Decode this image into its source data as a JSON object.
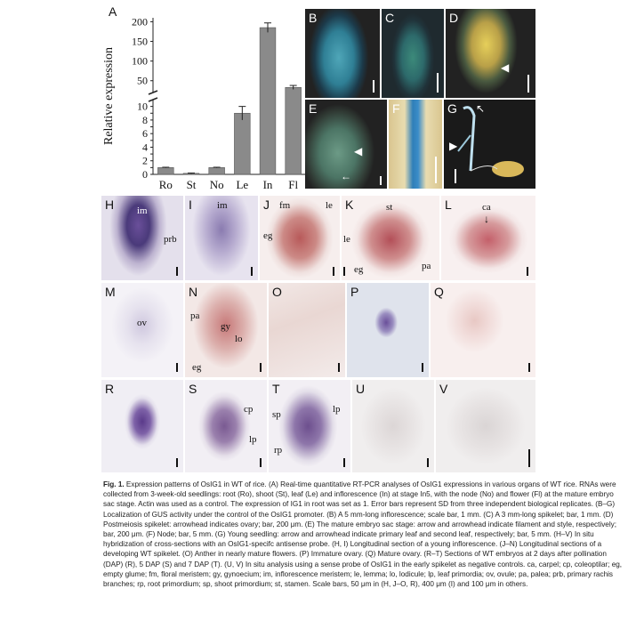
{
  "panel_labels": [
    "A",
    "B",
    "C",
    "D",
    "E",
    "F",
    "G",
    "H",
    "I",
    "J",
    "K",
    "L",
    "M",
    "N",
    "O",
    "P",
    "Q",
    "R",
    "S",
    "T",
    "U",
    "V"
  ],
  "chart_data": {
    "type": "bar",
    "categories": [
      "Ro",
      "St",
      "No",
      "Le",
      "In",
      "Fl"
    ],
    "values": [
      1.0,
      0.15,
      1.0,
      9.0,
      185,
      33
    ],
    "errors": [
      0.05,
      0.05,
      0.05,
      1.0,
      12,
      5
    ],
    "ylabel": "Relative expression",
    "xlabel": "",
    "title": "",
    "axis_break": [
      11,
      20
    ],
    "lower_ticks": [
      0,
      1,
      2,
      3,
      4,
      5,
      6,
      7,
      8,
      9,
      10
    ],
    "upper_ticks": [
      50,
      100,
      150,
      200
    ],
    "ylim_lower": [
      0,
      11
    ],
    "ylim_upper": [
      20,
      210
    ],
    "bar_color": "#8a8a8a",
    "grid": false
  },
  "annotations": {
    "H_im": "im",
    "H_prb": "prb",
    "I_im": "im",
    "J_fm": "fm",
    "J_le": "le",
    "J_eg": "eg",
    "K_st": "st",
    "K_le": "le",
    "K_eg": "eg",
    "K_pa": "pa",
    "L_ca": "ca",
    "M_ov": "ov",
    "N_pa": "pa",
    "N_gy": "gy",
    "N_lo": "lo",
    "N_eg": "eg",
    "S_cp": "cp",
    "S_lp": "lp",
    "T_sp": "sp",
    "T_lp": "lp",
    "T_rp": "rp"
  },
  "caption": {
    "figno": "Fig. 1.",
    "text": " Expression patterns of OsIG1 in WT of rice. (A) Real-time quantitative RT-PCR analyses of OsIG1 expressions in various organs of WT rice. RNAs were collected from 3-week-old seedlings: root (Ro), shoot (St), leaf (Le) and inflorescence (In) at stage In5, with the node (No) and flower (Fl) at the mature embryo sac stage. Actin was used as a control. The expression of IG1 in root was set as 1. Error bars represent SD from three independent biological replicates. (B–G) Localization of GUS activity under the control of the OsIG1 promoter. (B) A 5 mm-long inflorescence; scale bar, 1 mm. (C) A 3 mm-long spikelet; bar, 1 mm. (D) Postmeiosis spikelet: arrowhead indicates ovary; bar, 200 μm. (E) The mature embryo sac stage: arrow and arrowhead indicate filament and style, respectively; bar, 200 μm. (F) Node; bar, 5 mm. (G) Young seedling: arrow and arrowhead indicate primary leaf and second leaf, respectively; bar, 5 mm. (H–V) In situ hybridization of cross-sections with an OsIG1-specifc antisense probe. (H, I) Longitudinal section of a young inflorescence. (J–N) Longitudinal sections of a developing WT spikelet. (O) Anther in nearly mature flowers. (P) Immature ovary. (Q) Mature ovary. (R–T) Sections of WT embryos at 2 days after pollination (DAP) (R), 5 DAP (S) and 7 DAP (T). (U, V) In situ analysis using a sense probe of OsIG1 in the early spikelet as negative controls. ca, carpel; cp, coleoptilar; eg, empty glume; fm, floral meristem; gy, gynoecium; im, inflorescence meristem; le, lemma; lo, lodicule; lp, leaf primordia; ov, ovule; pa, palea; prb, primary rachis branches; rp, root primordium; sp, shoot primordium; st, stamen. Scale bars, 50 μm in (H, J–O, R), 400 μm (I) and 100 μm in others."
  }
}
